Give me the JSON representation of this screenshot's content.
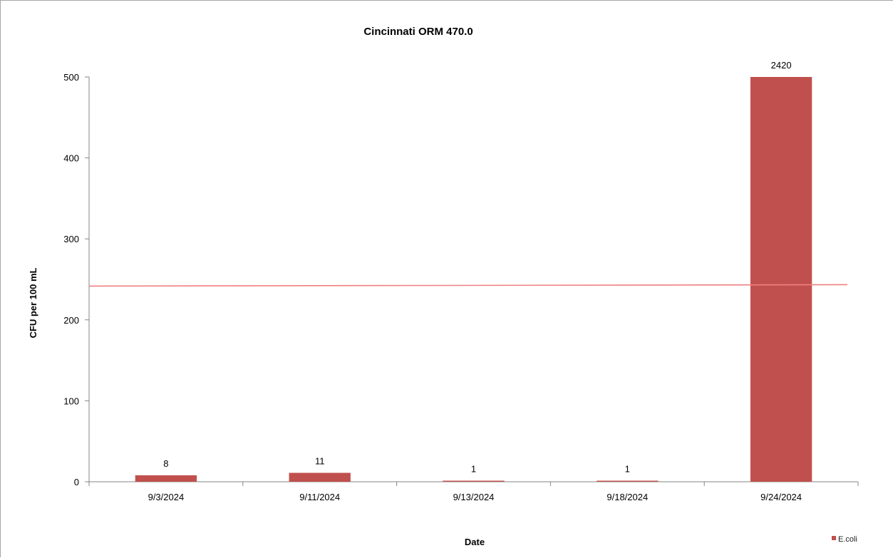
{
  "chart_data": {
    "type": "bar",
    "title": "Cincinnati ORM 470.0",
    "xlabel": "Date",
    "ylabel": "CFU per 100 mL",
    "categories": [
      "9/3/2024",
      "9/11/2024",
      "9/13/2024",
      "9/18/2024",
      "9/24/2024"
    ],
    "series": [
      {
        "name": "E.coli",
        "color": "#c0504d",
        "values": [
          8,
          11,
          1,
          1,
          2420
        ],
        "data_labels": [
          "8",
          "11",
          "1",
          "1",
          "2420"
        ]
      }
    ],
    "ylim": [
      0,
      500
    ],
    "yticks": [
      0,
      100,
      200,
      300,
      400,
      500
    ],
    "reference_line": {
      "value": 243,
      "color": "#f08080"
    },
    "grid": false,
    "legend_position": "bottom-right"
  }
}
